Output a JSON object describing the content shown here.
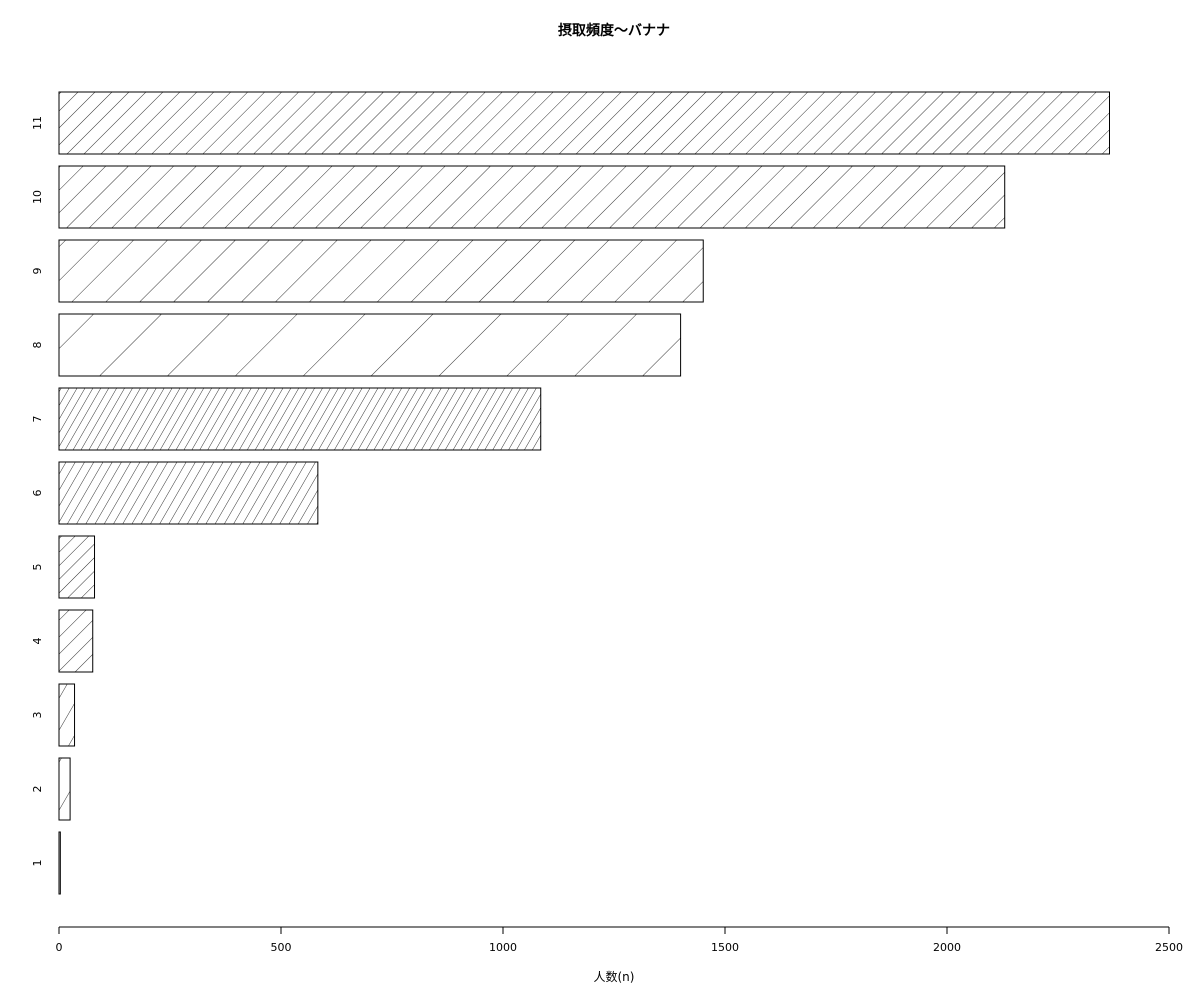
{
  "chart_data": {
    "type": "bar",
    "orientation": "horizontal",
    "title": "摂取頻度〜バナナ",
    "xlabel": "人数(n)",
    "ylabel": "",
    "xlim": [
      0,
      2500
    ],
    "xticks": [
      "0",
      "500",
      "1000",
      "1500",
      "2000",
      "2500"
    ],
    "xtick_values": [
      0,
      500,
      1000,
      1500,
      2000,
      2500
    ],
    "categories": [
      "1",
      "2",
      "3",
      "4",
      "5",
      "6",
      "7",
      "8",
      "9",
      "10",
      "11"
    ],
    "values": [
      3,
      25,
      35,
      76,
      80,
      583,
      1085,
      1400,
      1451,
      2130,
      2366
    ],
    "fill": "hatched",
    "hatch_angles": [
      0,
      60,
      60,
      45,
      45,
      60,
      60,
      45,
      45,
      45,
      45
    ],
    "hatch_densities": [
      0,
      4,
      6,
      8,
      10,
      12,
      14,
      2,
      4,
      6,
      8
    ],
    "grid": false,
    "legend": "none"
  }
}
